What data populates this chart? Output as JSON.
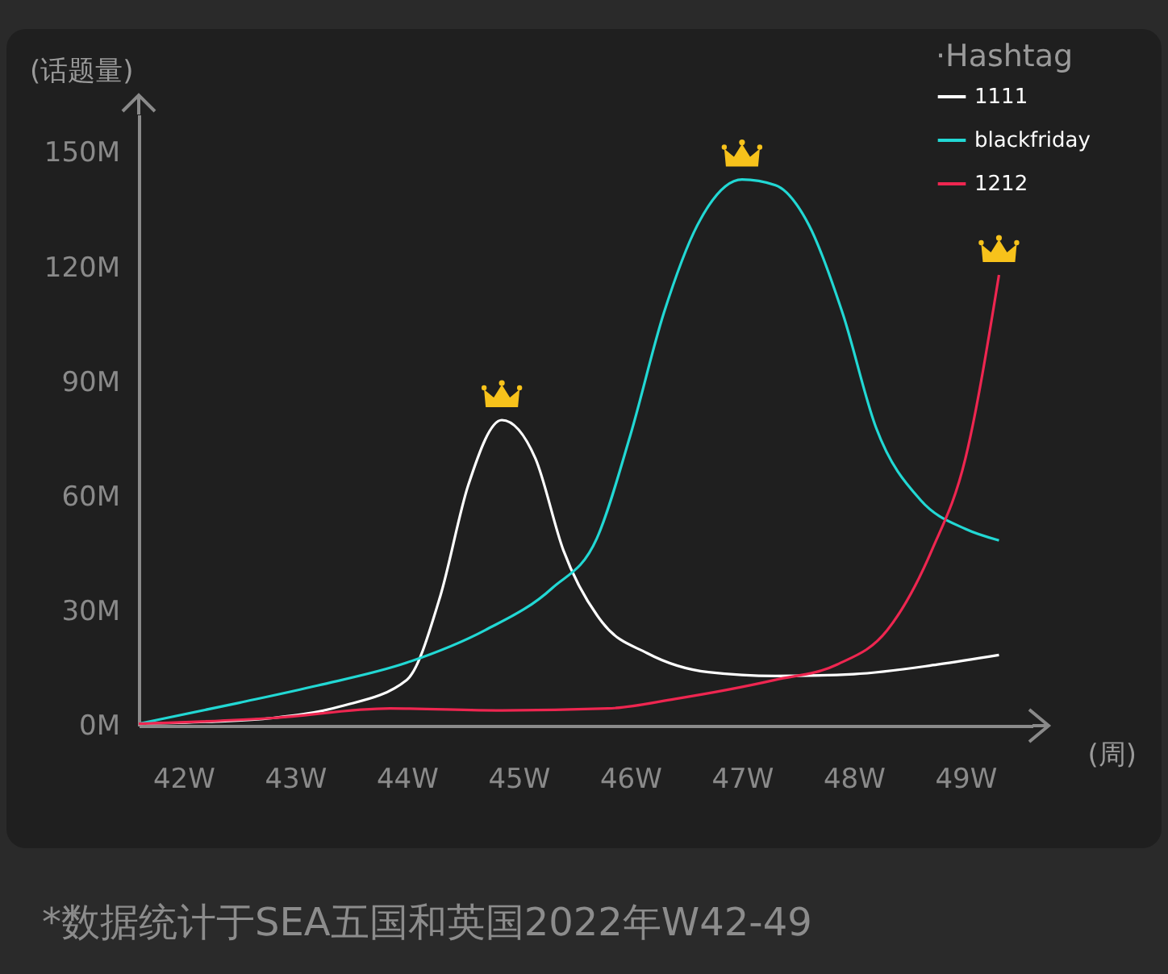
{
  "chart_data": {
    "type": "line",
    "xlabel": "(周)",
    "ylabel": "(话题量)",
    "legend_title": "·Hashtag",
    "legend": "top right",
    "grid": false,
    "annotations": [
      "*数据统计于SEA五国和英国2022年W42-49"
    ],
    "xlim": [
      41.6,
      49.6
    ],
    "xticks": [
      {
        "value": 42,
        "label": "42W"
      },
      {
        "value": 43,
        "label": "43W"
      },
      {
        "value": 44,
        "label": "44W"
      },
      {
        "value": 45,
        "label": "45W"
      },
      {
        "value": 46,
        "label": "46W"
      },
      {
        "value": 47,
        "label": "47W"
      },
      {
        "value": 48,
        "label": "48W"
      },
      {
        "value": 49,
        "label": "49W"
      }
    ],
    "ylim": [
      0,
      160
    ],
    "yticks": [
      {
        "value": 0,
        "label": "0M"
      },
      {
        "value": 30,
        "label": "30M"
      },
      {
        "value": 60,
        "label": "60M"
      },
      {
        "value": 90,
        "label": "90M"
      },
      {
        "value": 120,
        "label": "120M"
      },
      {
        "value": 150,
        "label": "150M"
      }
    ],
    "series": [
      {
        "name": "1111",
        "color": "#ffffff",
        "x": [
          41.6,
          42.2,
          42.8,
          43.4,
          44.0,
          44.3,
          44.55,
          44.85,
          45.15,
          45.4,
          45.75,
          46.15,
          46.7,
          47.3,
          48.0,
          48.75,
          49.3
        ],
        "values": [
          0.5,
          1,
          2,
          5,
          12,
          34,
          63,
          80,
          70,
          46,
          27,
          19,
          14,
          13,
          13.5,
          16,
          18.5
        ]
      },
      {
        "name": "blackfriday",
        "color": "#22d8d4",
        "x": [
          41.6,
          42.5,
          43.2,
          44.0,
          44.7,
          45.3,
          45.7,
          46.0,
          46.3,
          46.6,
          47.0,
          47.3,
          47.6,
          47.9,
          48.2,
          48.6,
          49.0,
          49.3
        ],
        "values": [
          0.5,
          6,
          10.5,
          16.5,
          25,
          36,
          49,
          76,
          108,
          131,
          143,
          141.5,
          131,
          108,
          78,
          59,
          51.5,
          48.5
        ]
      },
      {
        "name": "1212",
        "color": "#ee2650",
        "x": [
          41.6,
          42.8,
          43.85,
          44.85,
          45.8,
          46.4,
          47.3,
          47.85,
          48.3,
          48.7,
          49.0,
          49.3
        ],
        "values": [
          0.5,
          2,
          4.5,
          4,
          4.5,
          7,
          12,
          16,
          25,
          46,
          70,
          118
        ]
      }
    ]
  }
}
